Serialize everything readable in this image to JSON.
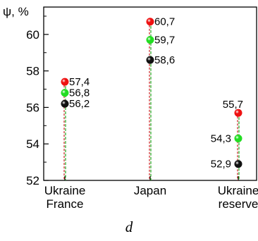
{
  "chart_data": {
    "type": "scatter",
    "ylabel": "ψ, %",
    "ylim": [
      52,
      61.5
    ],
    "yticks": [
      52,
      54,
      56,
      58,
      60
    ],
    "categories": [
      {
        "lines": [
          "Ukraine",
          "France"
        ]
      },
      {
        "lines": [
          "Japan"
        ]
      },
      {
        "lines": [
          "Ukraine",
          "reserve"
        ]
      }
    ],
    "series": [
      {
        "color": "#ee1111",
        "values": [
          57.4,
          60.7,
          55.7
        ],
        "labels": [
          "57,4",
          "60,7",
          "55,7"
        ]
      },
      {
        "color": "#22dd22",
        "values": [
          56.8,
          59.7,
          54.3
        ],
        "labels": [
          "56,8",
          "59,7",
          "54,3"
        ]
      },
      {
        "color": "#111111",
        "values": [
          56.2,
          58.6,
          52.9
        ],
        "labels": [
          "56,2",
          "58,6",
          "52,9"
        ]
      }
    ],
    "grid": false
  },
  "caption": "d"
}
